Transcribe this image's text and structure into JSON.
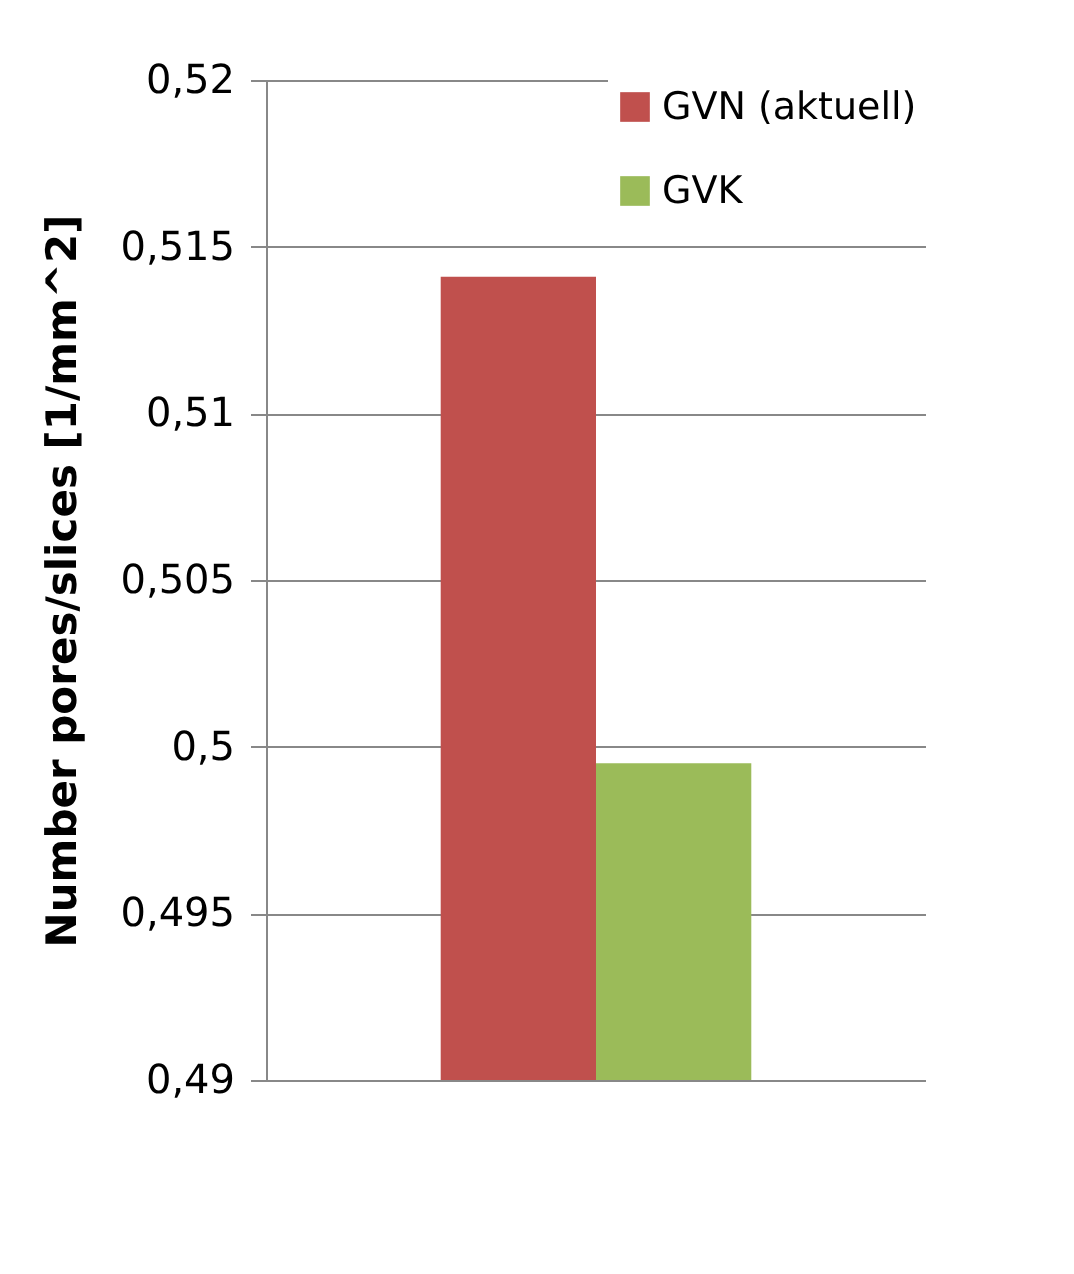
{
  "chart_data": {
    "type": "bar",
    "ylabel": "Number pores/slices [1/mm^2]",
    "categories": [
      null
    ],
    "series": [
      {
        "name": "GVN (aktuell)",
        "color": "#c0504d",
        "values": [
          0.5141
        ]
      },
      {
        "name": "GVK",
        "color": "#9bbb59",
        "values": [
          0.4995
        ]
      }
    ],
    "ylim": [
      0.49,
      0.52
    ],
    "yticks": [
      {
        "value": 0.49,
        "label": "0,49"
      },
      {
        "value": 0.495,
        "label": "0,495"
      },
      {
        "value": 0.5,
        "label": "0,5"
      },
      {
        "value": 0.505,
        "label": "0,505"
      },
      {
        "value": 0.51,
        "label": "0,51"
      },
      {
        "value": 0.515,
        "label": "0,515"
      },
      {
        "value": 0.52,
        "label": "0,52"
      }
    ],
    "grid": "y",
    "legend": "top right"
  }
}
